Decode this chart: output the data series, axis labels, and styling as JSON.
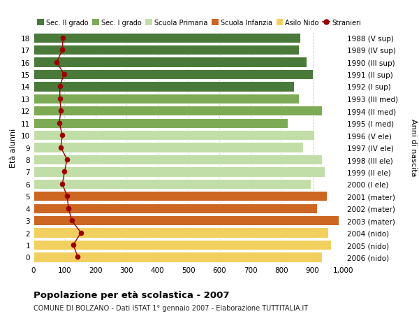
{
  "ages": [
    18,
    17,
    16,
    15,
    14,
    13,
    12,
    11,
    10,
    9,
    8,
    7,
    6,
    5,
    4,
    3,
    2,
    1,
    0
  ],
  "right_labels": [
    "1988 (V sup)",
    "1989 (IV sup)",
    "1990 (III sup)",
    "1991 (II sup)",
    "1992 (I sup)",
    "1993 (III med)",
    "1994 (II med)",
    "1995 (I med)",
    "1996 (V ele)",
    "1997 (IV ele)",
    "1998 (III ele)",
    "1999 (II ele)",
    "2000 (I ele)",
    "2001 (mater)",
    "2002 (mater)",
    "2003 (mater)",
    "2004 (nido)",
    "2005 (nido)",
    "2006 (nido)"
  ],
  "bar_values": [
    860,
    855,
    880,
    900,
    840,
    855,
    930,
    820,
    905,
    870,
    930,
    940,
    895,
    945,
    915,
    985,
    950,
    960,
    930
  ],
  "bar_colors": [
    "#4a7a3a",
    "#4a7a3a",
    "#4a7a3a",
    "#4a7a3a",
    "#4a7a3a",
    "#7dab55",
    "#7dab55",
    "#7dab55",
    "#c2dea8",
    "#c2dea8",
    "#c2dea8",
    "#c2dea8",
    "#c2dea8",
    "#cc6622",
    "#cc6622",
    "#cc6622",
    "#f2d060",
    "#f2d060",
    "#f2d060"
  ],
  "stranieri_values": [
    95,
    93,
    75,
    98,
    85,
    85,
    88,
    83,
    93,
    88,
    108,
    100,
    93,
    108,
    113,
    123,
    153,
    128,
    143
  ],
  "stranieri_color": "#990000",
  "xlim": [
    0,
    1000
  ],
  "ylabel": "Età alunni",
  "right_ylabel": "Anni di nascita",
  "title": "Popolazione per età scolastica - 2007",
  "subtitle": "COMUNE DI BOLZANO - Dati ISTAT 1° gennaio 2007 - Elaborazione TUTTITALIA.IT",
  "legend_labels": [
    "Sec. II grado",
    "Sec. I grado",
    "Scuola Primaria",
    "Scuola Infanzia",
    "Asilo Nido",
    "Stranieri"
  ],
  "legend_colors": [
    "#4a7a3a",
    "#7dab55",
    "#c2dea8",
    "#cc6622",
    "#f2d060",
    "#990000"
  ],
  "bg_color": "#ffffff"
}
